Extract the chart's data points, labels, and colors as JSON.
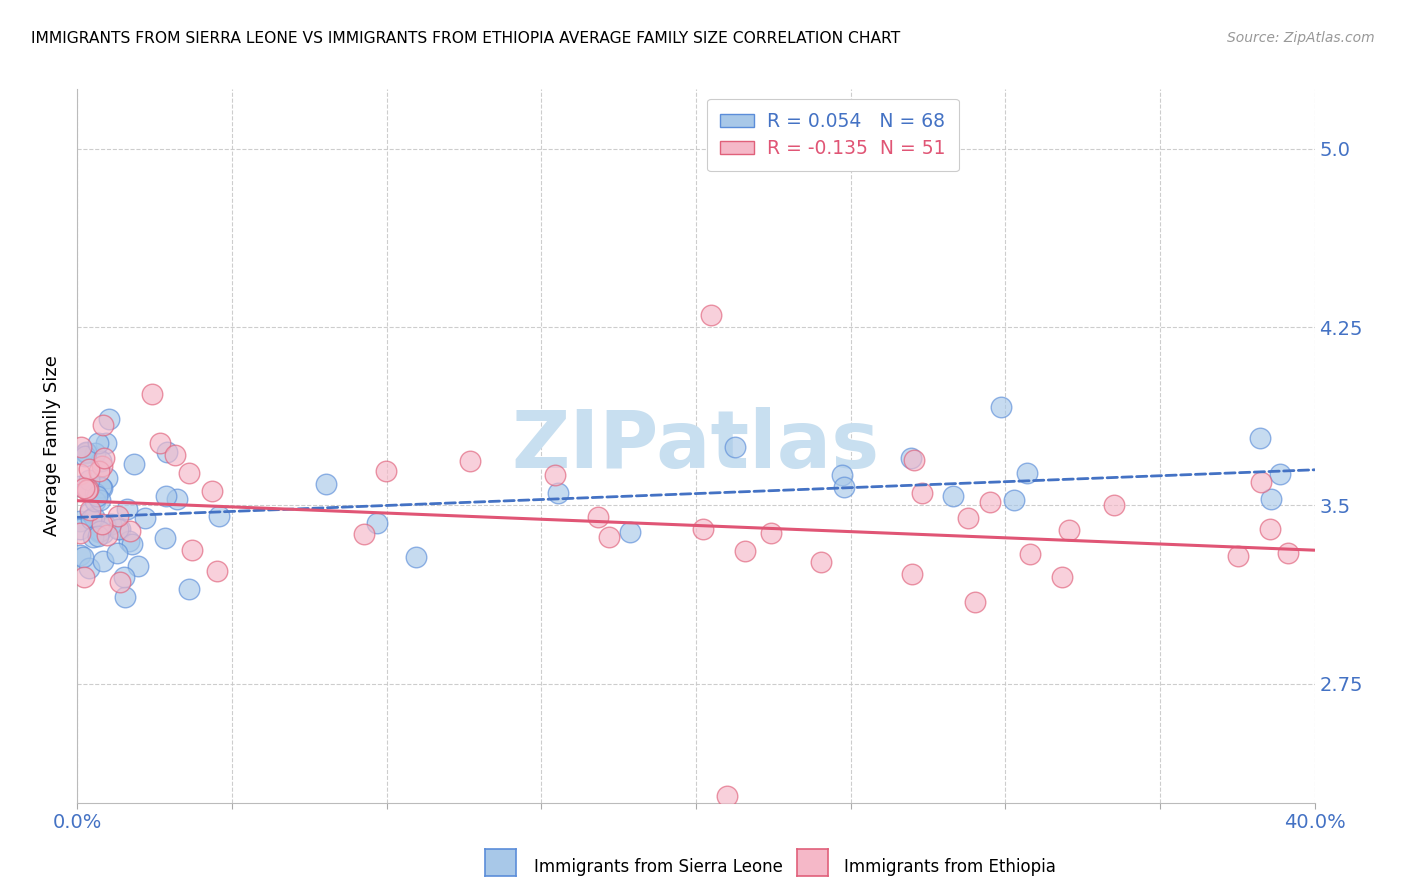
{
  "title": "IMMIGRANTS FROM SIERRA LEONE VS IMMIGRANTS FROM ETHIOPIA AVERAGE FAMILY SIZE CORRELATION CHART",
  "source": "Source: ZipAtlas.com",
  "ylabel": "Average Family Size",
  "xlim": [
    0.0,
    0.4
  ],
  "ylim": [
    2.25,
    5.25
  ],
  "yticks": [
    2.75,
    3.5,
    4.25,
    5.0
  ],
  "xticks": [
    0.0,
    0.05,
    0.1,
    0.15,
    0.2,
    0.25,
    0.3,
    0.35,
    0.4
  ],
  "xtick_labels": [
    "0.0%",
    "",
    "",
    "",
    "",
    "",
    "",
    "",
    "40.0%"
  ],
  "legend_r1": "0.054",
  "legend_n1": "68",
  "legend_r2": "-0.135",
  "legend_n2": "51",
  "color_sierra_fill": "#a8c8e8",
  "color_sierra_edge": "#5b8dd9",
  "color_ethiopia_fill": "#f5b8c8",
  "color_ethiopia_edge": "#e0607a",
  "color_line_sierra": "#4472c4",
  "color_line_ethiopia": "#e05575",
  "color_ytick": "#4472c4",
  "watermark_color": "#c8dff0",
  "sierra_intercept": 3.45,
  "sierra_slope": 0.5,
  "ethiopia_intercept": 3.52,
  "ethiopia_slope": -0.52,
  "legend_label1": "Immigrants from Sierra Leone",
  "legend_label2": "Immigrants from Ethiopia"
}
